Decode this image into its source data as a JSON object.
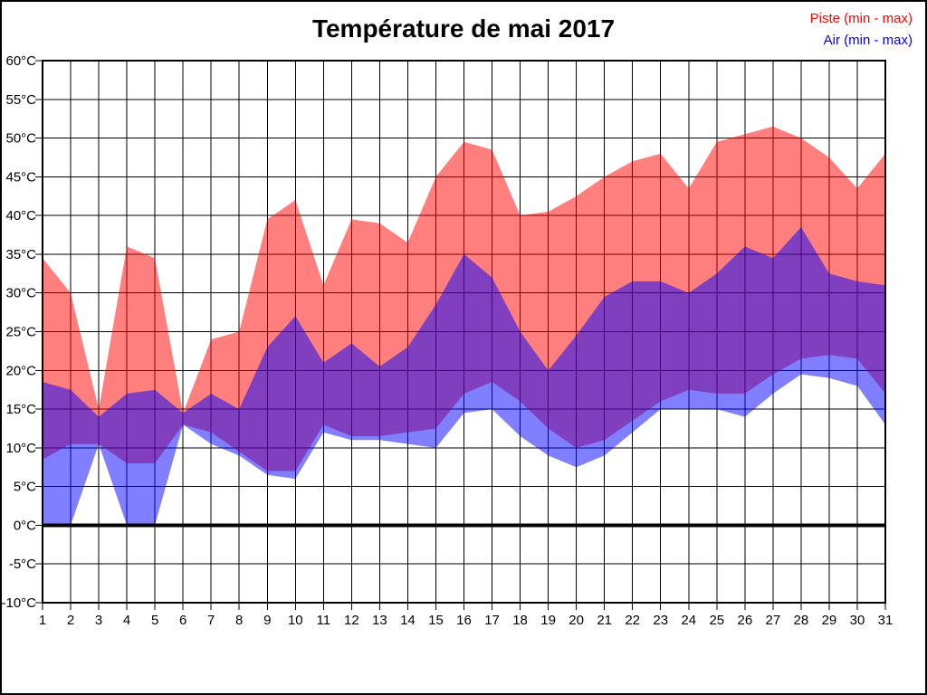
{
  "title": "Température de mai 2017",
  "legend": [
    {
      "label": "Piste (min - max)",
      "color": "#ff0000"
    },
    {
      "label": "Air (min - max)",
      "color": "#0000ff"
    }
  ],
  "chart_data": {
    "type": "area",
    "title": "Température de mai 2017",
    "xlabel": "",
    "ylabel": "",
    "x": [
      1,
      2,
      3,
      4,
      5,
      6,
      7,
      8,
      9,
      10,
      11,
      12,
      13,
      14,
      15,
      16,
      17,
      18,
      19,
      20,
      21,
      22,
      23,
      24,
      25,
      26,
      27,
      28,
      29,
      30,
      31
    ],
    "xtick_labels": [
      "1",
      "2",
      "3",
      "4",
      "5",
      "6",
      "7",
      "8",
      "9",
      "10",
      "11",
      "12",
      "13",
      "14",
      "15",
      "16",
      "17",
      "18",
      "19",
      "20",
      "21",
      "22",
      "23",
      "24",
      "25",
      "26",
      "27",
      "28",
      "29",
      "30",
      "31"
    ],
    "ylim": [
      -10,
      60
    ],
    "ytick_step": 5,
    "ytick_values": [
      60,
      55,
      50,
      45,
      40,
      35,
      30,
      25,
      20,
      15,
      10,
      5,
      0,
      -5,
      -10
    ],
    "ytick_labels": [
      "60°C",
      "55°C",
      "50°C",
      "45°C",
      "40°C",
      "35°C",
      "30°C",
      "25°C",
      "20°C",
      "15°C",
      "10°C",
      "5°C",
      "0°C",
      "-5°C",
      "-10°C"
    ],
    "grid": true,
    "zero_line": true,
    "legend_position": "top-right",
    "series": [
      {
        "name": "Piste (min - max)",
        "color": "#ff0000",
        "opacity": 0.5,
        "min": [
          8.5,
          10.5,
          10.5,
          8,
          8,
          13,
          12,
          9.5,
          7,
          7,
          13,
          11.5,
          11.5,
          12,
          12.5,
          17,
          18.5,
          16,
          12.5,
          10,
          11,
          13.5,
          16,
          17.5,
          17,
          17,
          19.5,
          21.5,
          22,
          21.5,
          17
        ],
        "max": [
          34.5,
          30,
          15,
          36,
          34.5,
          14.5,
          24,
          25,
          39.5,
          42,
          31,
          39.5,
          39,
          36.5,
          45,
          49.5,
          48.5,
          40,
          40.5,
          42.5,
          45,
          47,
          48,
          43.5,
          49.5,
          50.5,
          51.5,
          50,
          47.5,
          43.5,
          48
        ]
      },
      {
        "name": "Air (min - max)",
        "color": "#0000ff",
        "opacity": 0.5,
        "min": [
          0,
          0,
          10.5,
          0,
          0,
          13,
          10.5,
          9,
          6.5,
          6,
          12,
          11,
          11,
          10.5,
          10,
          14.5,
          15,
          11.5,
          9,
          7.5,
          9,
          12,
          15,
          15,
          15,
          14,
          17,
          19.5,
          19,
          18,
          13
        ],
        "max": [
          18.5,
          17.5,
          14,
          17,
          17.5,
          14.5,
          17,
          15,
          23,
          27,
          21,
          23.5,
          20.5,
          23,
          28.5,
          35,
          32,
          25,
          20,
          24.5,
          29.5,
          31.5,
          31.5,
          30,
          32.5,
          36,
          34.5,
          38.5,
          32.5,
          31.5,
          31
        ]
      }
    ]
  }
}
